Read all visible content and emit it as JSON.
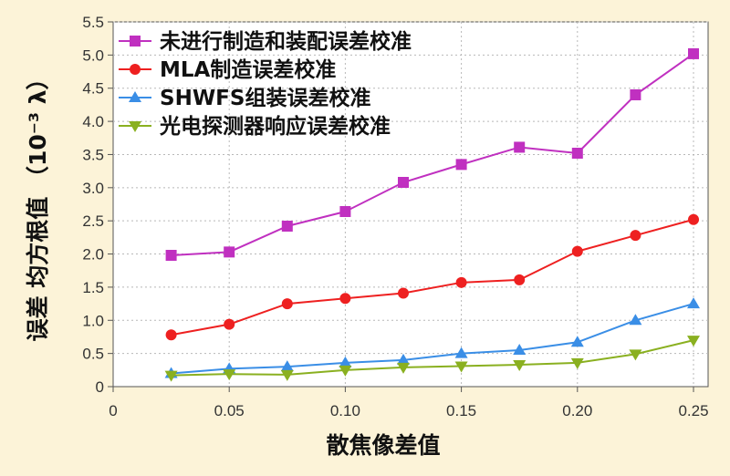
{
  "chart_data": {
    "type": "line",
    "xlabel": "散焦像差值",
    "ylabel": "误差 均方根值 （10⁻³ λ）",
    "xlim": [
      0,
      0.25
    ],
    "ylim": [
      0,
      5.5
    ],
    "x_ticks": [
      "0",
      "0.05",
      "0.10",
      "0.15",
      "0.20",
      "0.25"
    ],
    "y_ticks": [
      "0",
      "0.5",
      "1.0",
      "1.5",
      "2.0",
      "2.5",
      "3.0",
      "3.5",
      "4.0",
      "4.5",
      "5.0",
      "5.5"
    ],
    "grid": true,
    "legend_position": "top-left",
    "x": [
      0.025,
      0.05,
      0.075,
      0.1,
      0.125,
      0.15,
      0.175,
      0.2,
      0.225,
      0.25
    ],
    "series": [
      {
        "name": "未进行制造和装配误差校准",
        "marker": "square",
        "color": "#c030c0",
        "values": [
          1.98,
          2.03,
          2.42,
          2.64,
          3.08,
          3.35,
          3.61,
          3.52,
          4.4,
          5.02
        ]
      },
      {
        "name": "MLA制造误差校准",
        "marker": "circle",
        "color": "#ee2020",
        "values": [
          0.78,
          0.94,
          1.25,
          1.33,
          1.41,
          1.57,
          1.61,
          2.04,
          2.28,
          2.52
        ]
      },
      {
        "name": "SHWFS组装误差校准",
        "marker": "triangle-up",
        "color": "#3a8ee6",
        "values": [
          0.2,
          0.27,
          0.3,
          0.36,
          0.4,
          0.5,
          0.55,
          0.67,
          1.0,
          1.25
        ]
      },
      {
        "name": "光电探测器响应误差校准",
        "marker": "triangle-down",
        "color": "#8ab020",
        "values": [
          0.17,
          0.19,
          0.18,
          0.25,
          0.29,
          0.31,
          0.33,
          0.36,
          0.49,
          0.7
        ]
      }
    ]
  }
}
